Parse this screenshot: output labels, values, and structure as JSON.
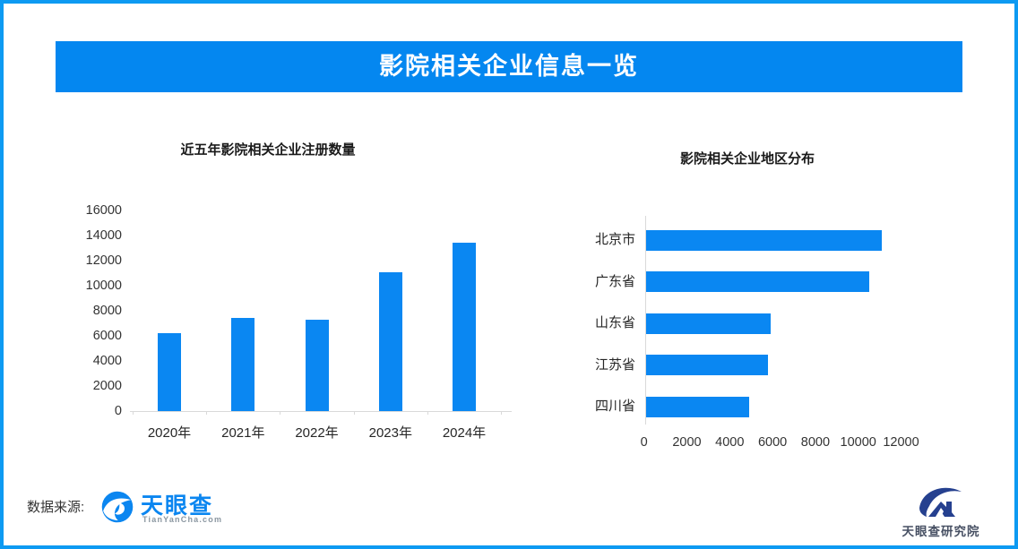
{
  "page": {
    "banner_title": "影院相关企业信息一览",
    "source_label": "数据来源:",
    "colors": {
      "banner_blue": "#0487f0",
      "bar_blue": "#0a87f2",
      "page_border_blue": "#0d9af2",
      "axis_gray": "#d9d9d9",
      "label_dark": "#333333"
    }
  },
  "logos": {
    "tianyancha": {
      "wordmark": "天眼查",
      "domain": "TianYanCha.com"
    },
    "research_institute": {
      "wordmark": "天眼查研究院"
    }
  },
  "chart_data": [
    {
      "type": "bar",
      "orientation": "vertical",
      "title": "近五年影院相关企业注册数量",
      "categories": [
        "2020年",
        "2021年",
        "2022年",
        "2023年",
        "2024年"
      ],
      "values": [
        6200,
        7400,
        7300,
        11100,
        13400
      ],
      "ylabel": "",
      "xlabel": "",
      "ylim": [
        0,
        16000
      ],
      "ytick_step": 2000,
      "ytick_labels": [
        "16000",
        "14000",
        "12000",
        "10000",
        "8000",
        "6000",
        "4000",
        "2000",
        "0"
      ],
      "grid": false,
      "legend": false,
      "bar_color": "#0a87f2"
    },
    {
      "type": "bar",
      "orientation": "horizontal",
      "title": "影院相关企业地区分布",
      "categories": [
        "北京市",
        "广东省",
        "山东省",
        "江苏省",
        "四川省"
      ],
      "values": [
        11000,
        10400,
        5800,
        5700,
        4800
      ],
      "ylabel": "",
      "xlabel": "",
      "xlim": [
        0,
        12000
      ],
      "xtick_step": 2000,
      "xtick_labels": [
        "0",
        "2000",
        "4000",
        "6000",
        "8000",
        "10000",
        "12000"
      ],
      "grid": false,
      "legend": false,
      "bar_color": "#0a87f2"
    }
  ]
}
